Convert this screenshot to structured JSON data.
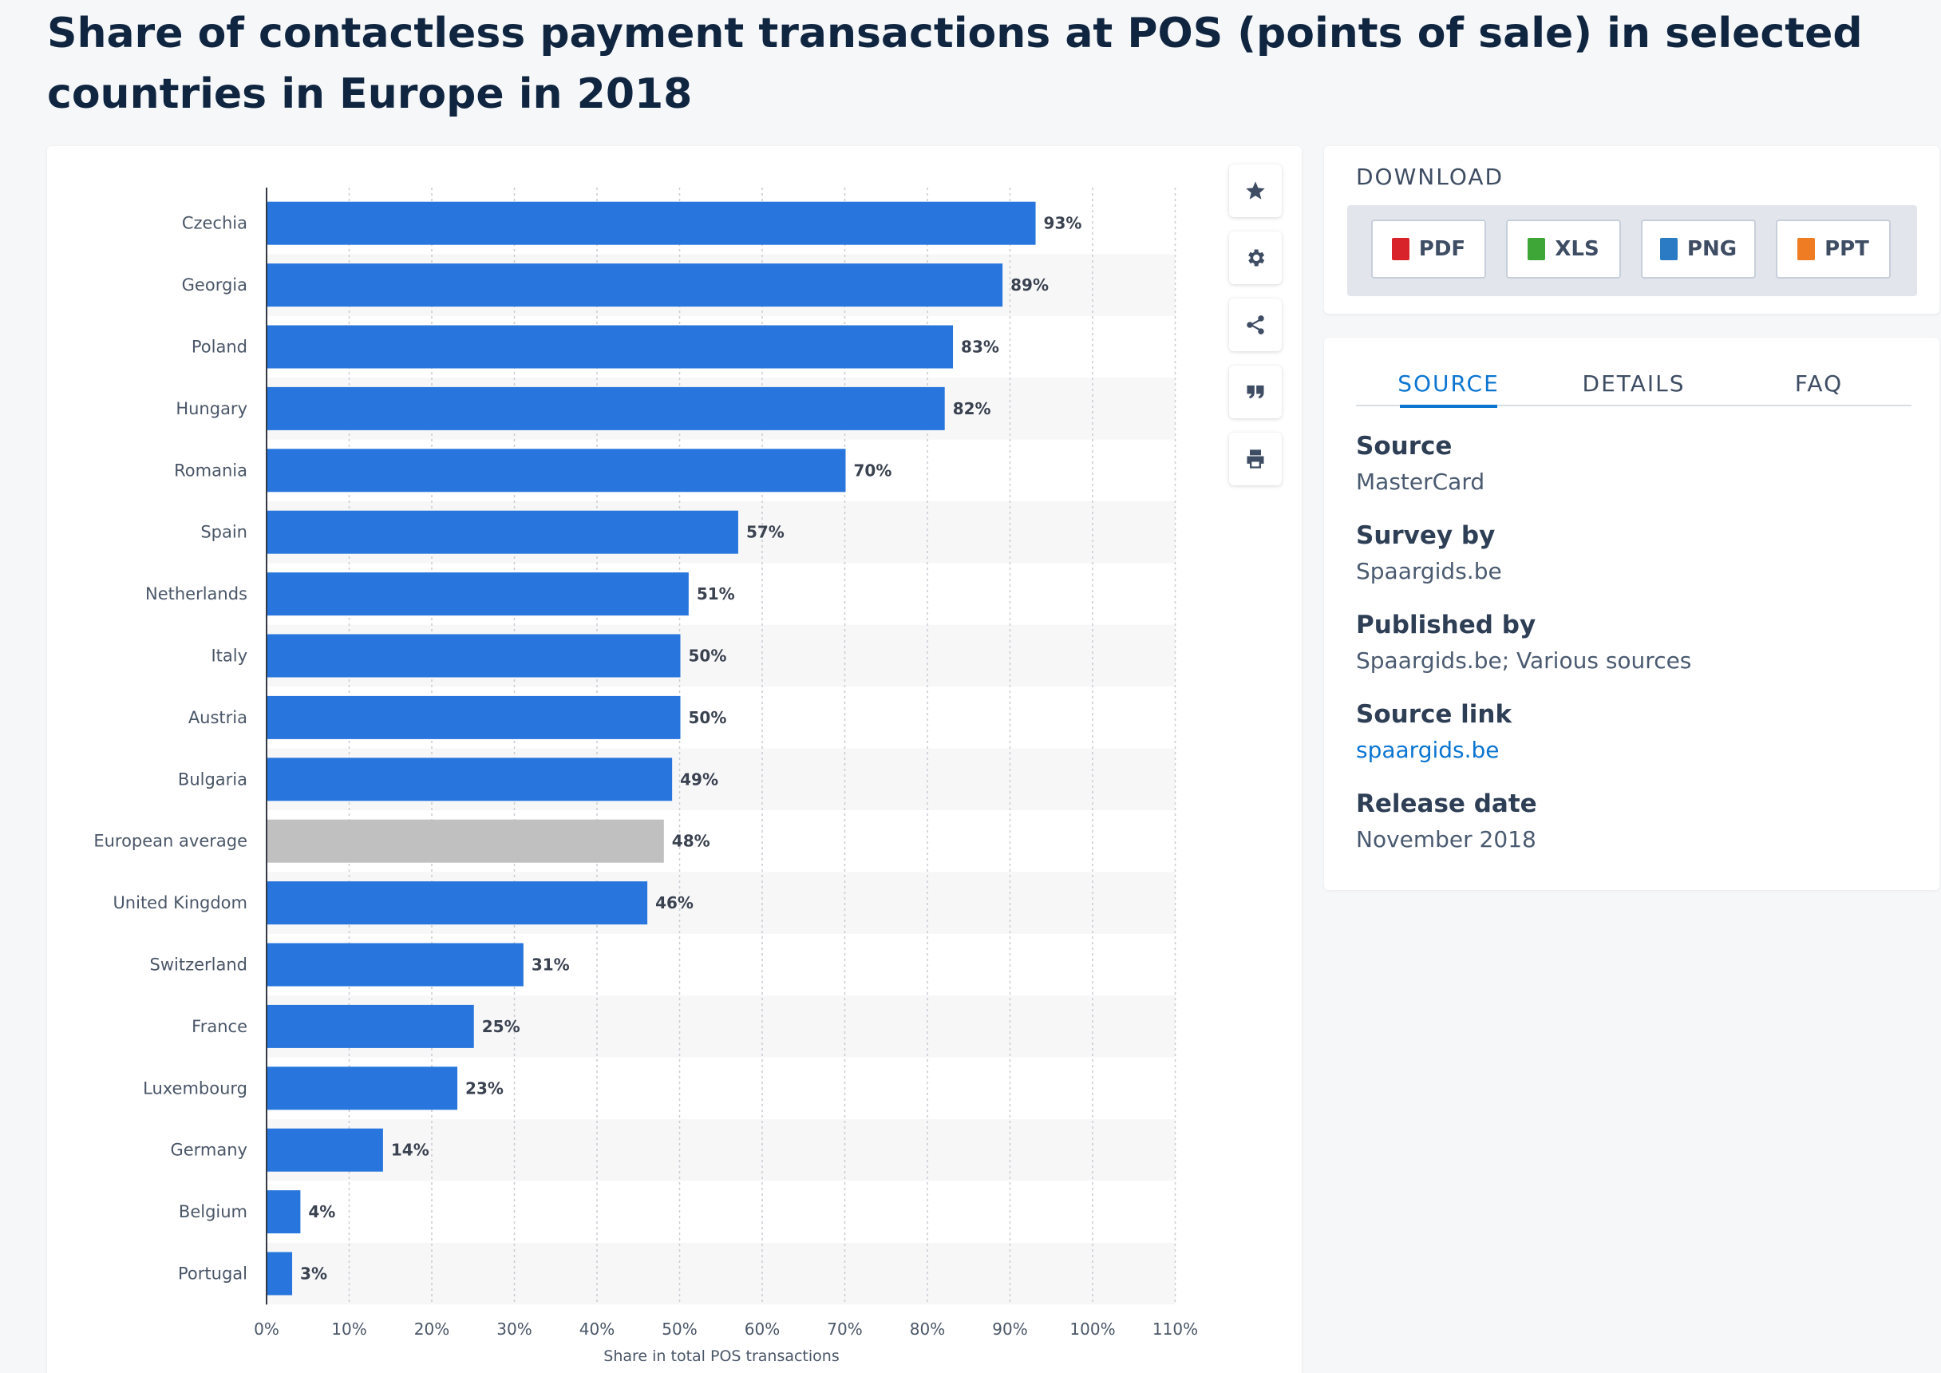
{
  "title": "Share of contactless payment transactions at POS (points of sale) in selected countries in Europe in 2018",
  "toolbar": {
    "icons": [
      "star-icon",
      "gear-icon",
      "share-icon",
      "quote-icon",
      "print-icon"
    ]
  },
  "download": {
    "title": "DOWNLOAD",
    "buttons": [
      {
        "label": "PDF",
        "color": "#d8232a"
      },
      {
        "label": "XLS",
        "color": "#3ea636"
      },
      {
        "label": "PNG",
        "color": "#2b7bc4"
      },
      {
        "label": "PPT",
        "color": "#ef7c22"
      }
    ]
  },
  "info": {
    "tabs": [
      "SOURCE",
      "DETAILS",
      "FAQ"
    ],
    "fields": [
      {
        "label": "Source",
        "value": "MasterCard"
      },
      {
        "label": "Survey by",
        "value": "Spaargids.be"
      },
      {
        "label": "Published by",
        "value": "Spaargids.be; Various sources"
      },
      {
        "label": "Source link",
        "value": "spaargids.be"
      },
      {
        "label": "Release date",
        "value": "November 2018"
      }
    ]
  },
  "chart_data": {
    "type": "bar",
    "orientation": "horizontal",
    "categories": [
      "Czechia",
      "Georgia",
      "Poland",
      "Hungary",
      "Romania",
      "Spain",
      "Netherlands",
      "Italy",
      "Austria",
      "Bulgaria",
      "European average",
      "United Kingdom",
      "Switzerland",
      "France",
      "Luxembourg",
      "Germany",
      "Belgium",
      "Portugal"
    ],
    "values": [
      93,
      89,
      83,
      82,
      70,
      57,
      51,
      50,
      50,
      49,
      48,
      46,
      31,
      25,
      23,
      14,
      4,
      3
    ],
    "data_labels": [
      "93%",
      "89%",
      "83%",
      "82%",
      "70%",
      "57%",
      "51%",
      "50%",
      "50%",
      "49%",
      "48%",
      "46%",
      "31%",
      "25%",
      "23%",
      "14%",
      "4%",
      "3%"
    ],
    "highlight_category": "European average",
    "xlabel": "Share in total POS transactions",
    "ylabel": "",
    "xlim": [
      0,
      110
    ],
    "xticks": [
      0,
      10,
      20,
      30,
      40,
      50,
      60,
      70,
      80,
      90,
      100,
      110
    ],
    "xtick_labels": [
      "0%",
      "10%",
      "20%",
      "30%",
      "40%",
      "50%",
      "60%",
      "70%",
      "80%",
      "90%",
      "100%",
      "110%"
    ],
    "grid": true,
    "colors": {
      "bar": "#2876dd",
      "highlight": "#c0c0c0",
      "stripe": "#f7f7f8"
    }
  }
}
